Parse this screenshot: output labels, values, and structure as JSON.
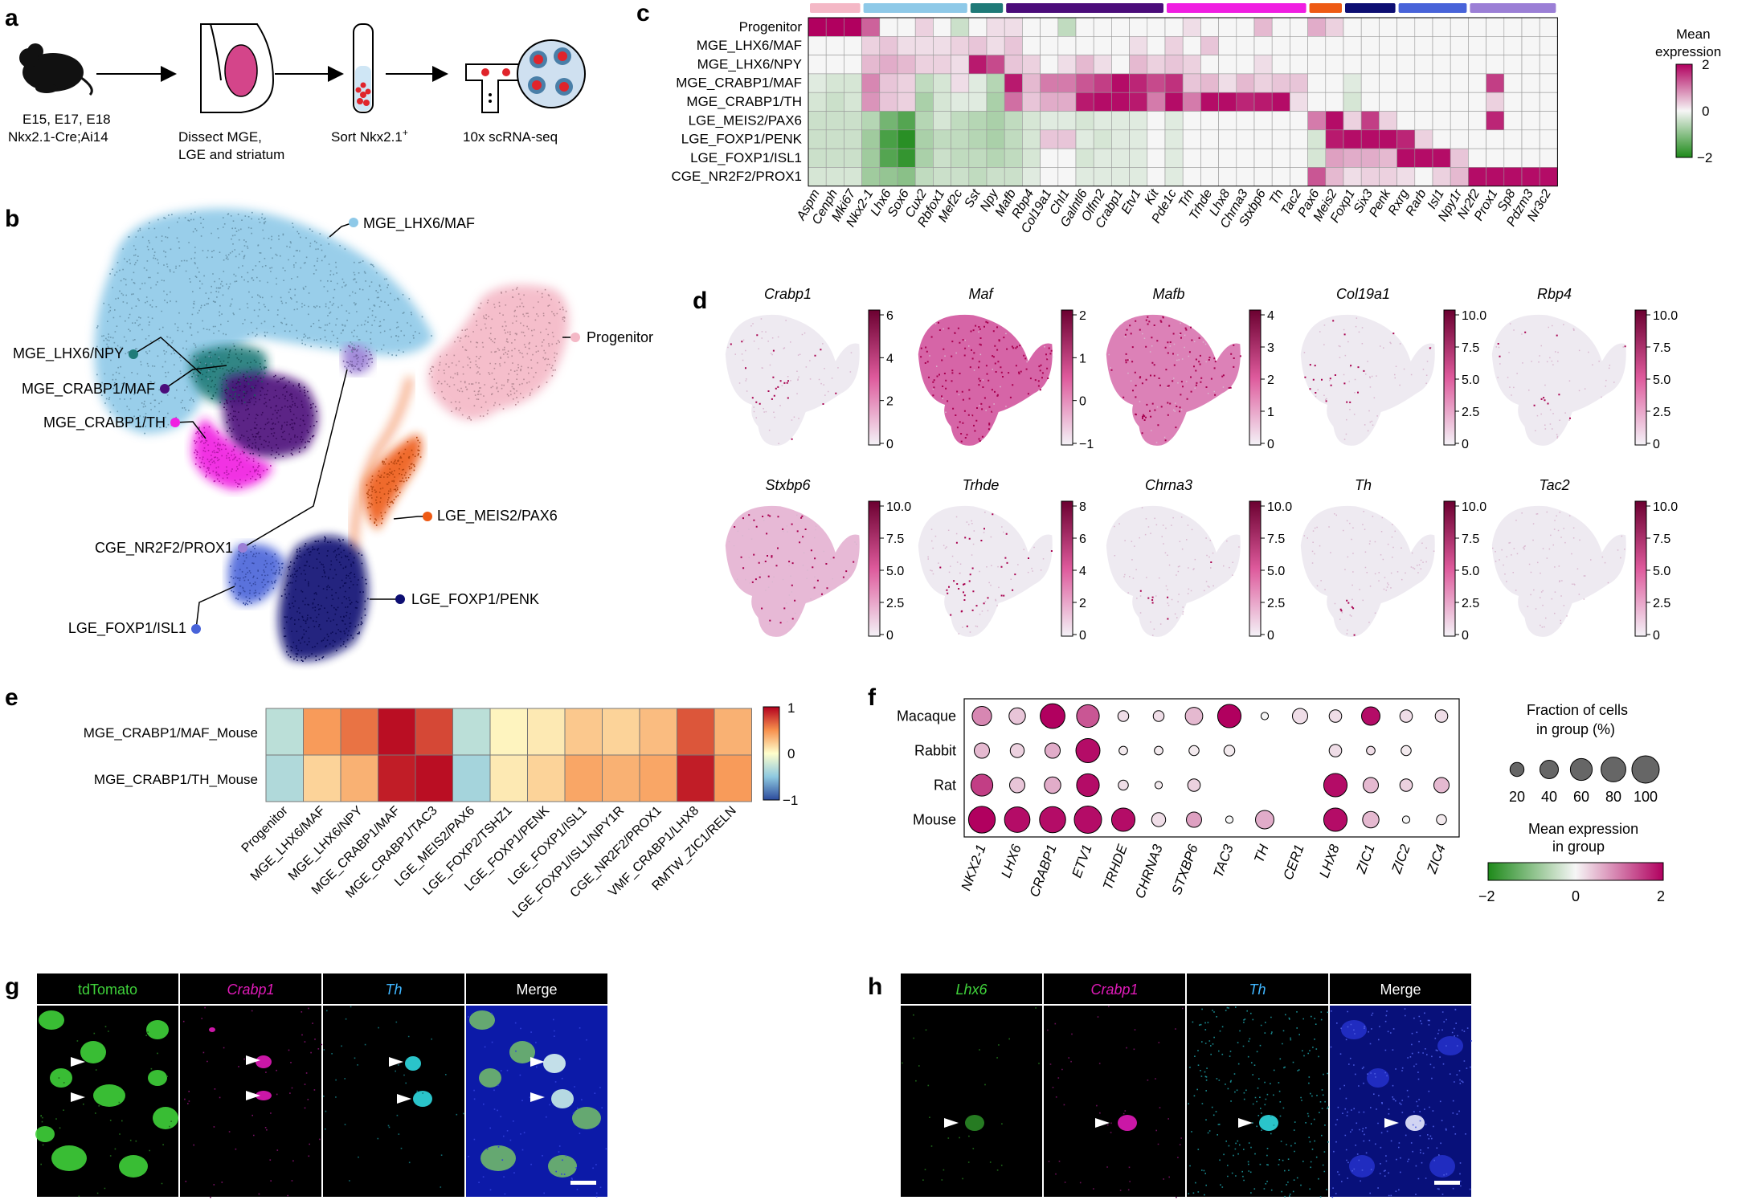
{
  "colors": {
    "heat_neg": "#1e8a1a",
    "heat_zero": "#f6f6f6",
    "heat_pos": "#b1005f",
    "rb_neg": "#2c4b9c",
    "rb_zero": "#ffffcc",
    "rb_pos": "#b3001e",
    "umap_clusters": {
      "MGE_LHX6/MAF": "#8ec9e8",
      "Progenitor": "#f4b8c6",
      "MGE_LHX6/NPY": "#1f7a78",
      "MGE_CRABP1/MAF": "#4b0c7a",
      "MGE_CRABP1/TH": "#f01ee1",
      "LGE_MEIS2/PAX6": "#ee5a14",
      "CGE_NR2F2/PROX1": "#9b7fd6",
      "LGE_FOXP1/ISL1": "#4863d9",
      "LGE_FOXP1/PENK": "#0d0e72"
    }
  },
  "panel_a": {
    "label": "a",
    "mouse_caption": [
      "E15, E17, E18",
      "Nkx2.1-Cre;Ai14"
    ],
    "dissect_caption": [
      "Dissect MGE,",
      "LGE and striatum"
    ],
    "sort_caption": "Sort Nkx2.1",
    "sort_sup": "+",
    "seq_caption": "10x scRNA-seq"
  },
  "panel_b": {
    "label": "b",
    "cluster_labels": [
      "MGE_LHX6/MAF",
      "Progenitor",
      "MGE_LHX6/NPY",
      "MGE_CRABP1/MAF",
      "MGE_CRABP1/TH",
      "LGE_MEIS2/PAX6",
      "CGE_NR2F2/PROX1",
      "LGE_FOXP1/ISL1",
      "LGE_FOXP1/PENK"
    ]
  },
  "panel_c": {
    "label": "c",
    "legend_title": [
      "Mean",
      "expression"
    ],
    "colorbar_ticks": [
      "2",
      "0",
      "−2"
    ],
    "rows": [
      "Progenitor",
      "MGE_LHX6/MAF",
      "MGE_LHX6/NPY",
      "MGE_CRABP1/MAF",
      "MGE_CRABP1/TH",
      "LGE_MEIS2/PAX6",
      "LGE_FOXP1/PENK",
      "LGE_FOXP1/ISL1",
      "CGE_NR2F2/PROX1"
    ],
    "genes": [
      "Aspm",
      "Cenph",
      "Mki67",
      "Nkx2-1",
      "Lhx6",
      "Sox6",
      "Cux2",
      "Rbfox1",
      "Mef2c",
      "Sst",
      "Npy",
      "Mafb",
      "Rbp4",
      "Col19a1",
      "Chl1",
      "Galntl6",
      "Olfm2",
      "Crabp1",
      "Etv1",
      "Kit",
      "Pde1c",
      "Trh",
      "Trhde",
      "Lhx8",
      "Chrna3",
      "Stxbp6",
      "Th",
      "Tac2",
      "Pax6",
      "Meis2",
      "Foxp1",
      "Six3",
      "Penk",
      "Rxrg",
      "Rarb",
      "Isl1",
      "Npy1r",
      "Nr2f2",
      "Prox1",
      "Sp8",
      "Pdzm3",
      "Nr3c2"
    ],
    "group_bars": [
      {
        "start": 0,
        "end": 2,
        "color": "#f4b8c6"
      },
      {
        "start": 3,
        "end": 8,
        "color": "#8ec9e8"
      },
      {
        "start": 9,
        "end": 10,
        "color": "#1f7a78"
      },
      {
        "start": 11,
        "end": 19,
        "color": "#4b0c7a"
      },
      {
        "start": 20,
        "end": 27,
        "color": "#f01ee1"
      },
      {
        "start": 28,
        "end": 29,
        "color": "#ee5a14"
      },
      {
        "start": 30,
        "end": 32,
        "color": "#0d0e72"
      },
      {
        "start": 33,
        "end": 36,
        "color": "#4863d9"
      },
      {
        "start": 37,
        "end": 41,
        "color": "#9b7fd6"
      }
    ],
    "matrix": [
      [
        2,
        2,
        2,
        1.2,
        0,
        0,
        0.3,
        0,
        -0.4,
        0,
        0.2,
        0.2,
        0,
        0,
        -0.5,
        0,
        0,
        0,
        0,
        0,
        0,
        0.2,
        0,
        0,
        0,
        0.5,
        0,
        0,
        0.6,
        0.3,
        0,
        0,
        0,
        0,
        0,
        0,
        0,
        0,
        0,
        0,
        0,
        0
      ],
      [
        0,
        0,
        0,
        0.3,
        0.4,
        0.2,
        0.2,
        0.2,
        0.3,
        0.4,
        0.2,
        0.4,
        0,
        0,
        0,
        0,
        0,
        0,
        0.2,
        0,
        0.3,
        0,
        0.4,
        0,
        0,
        0,
        0,
        0,
        0,
        0,
        0,
        0,
        0,
        0,
        0,
        0,
        0,
        0,
        0,
        0,
        0,
        0
      ],
      [
        0,
        0,
        0,
        0.5,
        0.6,
        0.5,
        0.3,
        0.3,
        0.2,
        1.8,
        1.4,
        0.4,
        0.3,
        0,
        0.2,
        0.5,
        0.2,
        0,
        0.5,
        0.3,
        0.4,
        0.3,
        0,
        0,
        0,
        0.2,
        0,
        0,
        0,
        0,
        0,
        0,
        0,
        0,
        0,
        0,
        0,
        0,
        0,
        0,
        0,
        0
      ],
      [
        -0.2,
        -0.3,
        -0.3,
        0.9,
        0.4,
        0.3,
        -0.5,
        -0.3,
        0.2,
        -0.2,
        -0.6,
        1.8,
        0.5,
        1.0,
        1.0,
        1.3,
        1.5,
        1.9,
        1.7,
        1.4,
        1.6,
        0.4,
        0.5,
        0.2,
        0.5,
        0.3,
        0.4,
        0.4,
        0,
        0,
        -0.2,
        0,
        0,
        0,
        0,
        0,
        0,
        0,
        1.5,
        0,
        0,
        0
      ],
      [
        -0.3,
        -0.4,
        -0.3,
        0.8,
        0.4,
        0.3,
        -0.7,
        -0.3,
        -0.2,
        -0.2,
        -0.7,
        1.1,
        0.4,
        0.6,
        0.6,
        1.8,
        1.9,
        1.9,
        1.8,
        1.0,
        1.9,
        1.0,
        1.9,
        1.9,
        1.7,
        1.8,
        1.9,
        0.2,
        0,
        0,
        -0.3,
        0,
        0,
        0,
        0,
        0,
        0,
        0,
        0.3,
        0,
        0,
        0
      ],
      [
        -0.4,
        -0.4,
        -0.4,
        -0.6,
        -1.2,
        -1.5,
        -0.6,
        -0.3,
        -0.5,
        -0.6,
        -0.7,
        -0.5,
        -0.3,
        -0.2,
        -0.2,
        -0.3,
        -0.2,
        -0.2,
        -0.2,
        0,
        -0.2,
        0,
        0,
        0,
        0,
        0,
        0,
        0,
        1.0,
        1.9,
        0.3,
        1.5,
        0.3,
        0,
        0,
        0,
        0,
        0,
        1.7,
        0,
        0,
        0
      ],
      [
        -0.4,
        -0.4,
        -0.4,
        -0.8,
        -1.6,
        -1.9,
        -0.7,
        -0.5,
        -0.5,
        -0.6,
        -0.7,
        -0.5,
        -0.3,
        0.4,
        0.4,
        -0.2,
        -0.3,
        -0.2,
        -0.2,
        0,
        -0.2,
        0,
        0,
        0,
        0,
        0,
        0,
        0,
        -0.3,
        1.8,
        1.9,
        1.9,
        1.9,
        1.7,
        0.3,
        0,
        0,
        0,
        0,
        0,
        0,
        0
      ],
      [
        -0.4,
        -0.4,
        -0.4,
        -0.8,
        -1.5,
        -1.8,
        -0.7,
        -0.4,
        -0.5,
        -0.5,
        -0.6,
        -0.5,
        -0.3,
        0,
        0,
        -0.3,
        -0.2,
        -0.2,
        -0.2,
        0,
        -0.2,
        0,
        0,
        0,
        0,
        0,
        0,
        0,
        -0.3,
        0.7,
        0.6,
        0.6,
        0.5,
        1.9,
        1.9,
        1.9,
        0.4,
        0,
        0,
        0,
        0,
        0
      ],
      [
        -0.3,
        -0.3,
        -0.3,
        -0.8,
        -0.9,
        -1.0,
        -0.5,
        -0.4,
        -0.4,
        -0.5,
        -0.4,
        -0.4,
        -0.2,
        0,
        0,
        -0.2,
        -0.2,
        -0.2,
        -0.2,
        0,
        -0.2,
        0,
        0,
        0,
        0,
        0,
        0,
        0,
        1.3,
        0.5,
        0.2,
        0.3,
        0.3,
        0.2,
        0,
        0.3,
        0.5,
        1.9,
        1.9,
        1.9,
        1.9,
        1.9
      ]
    ]
  },
  "panel_d": {
    "label": "d",
    "maps": [
      {
        "gene": "Crabp1",
        "ticks": [
          "6",
          "4",
          "2",
          "0"
        ]
      },
      {
        "gene": "Maf",
        "ticks": [
          "2",
          "1",
          "0",
          "−1"
        ]
      },
      {
        "gene": "Mafb",
        "ticks": [
          "4",
          "3",
          "2",
          "1",
          "0"
        ]
      },
      {
        "gene": "Col19a1",
        "ticks": [
          "10.0",
          "7.5",
          "5.0",
          "2.5",
          "0"
        ]
      },
      {
        "gene": "Rbp4",
        "ticks": [
          "10.0",
          "7.5",
          "5.0",
          "2.5",
          "0"
        ]
      },
      {
        "gene": "Stxbp6",
        "ticks": [
          "10.0",
          "7.5",
          "5.0",
          "2.5",
          "0"
        ]
      },
      {
        "gene": "Trhde",
        "ticks": [
          "8",
          "6",
          "4",
          "2",
          "0"
        ]
      },
      {
        "gene": "Chrna3",
        "ticks": [
          "10.0",
          "7.5",
          "5.0",
          "2.5",
          "0"
        ]
      },
      {
        "gene": "Th",
        "ticks": [
          "10.0",
          "7.5",
          "5.0",
          "2.5",
          "0"
        ]
      },
      {
        "gene": "Tac2",
        "ticks": [
          "10.0",
          "7.5",
          "5.0",
          "2.5",
          "0"
        ]
      }
    ]
  },
  "panel_e": {
    "label": "e",
    "rows": [
      "MGE_CRABP1/MAF_Mouse",
      "MGE_CRABP1/TH_Mouse"
    ],
    "cols": [
      "Progenitor",
      "MGE_LHX6/MAF",
      "MGE_LHX6/NPY",
      "MGE_CRABP1/MAF",
      "MGE_CRABP1/TAC3",
      "LGE_MEIS2/PAX6",
      "LGE_FOXP2/TSHZ1",
      "LGE_FOXP1/PENK",
      "LGE_FOXP1/ISL1",
      "LGE_FOXP1/ISL1/NPY1R",
      "CGE_NR2F2/PROX1",
      "VMF_CRABP1/LHX8",
      "RMTW_ZIC1/RELN"
    ],
    "matrix": [
      [
        -0.3,
        0.45,
        0.6,
        0.95,
        0.75,
        -0.3,
        0.05,
        0.1,
        0.25,
        0.2,
        0.3,
        0.7,
        0.35
      ],
      [
        -0.35,
        0.2,
        0.35,
        0.9,
        0.95,
        -0.4,
        0.1,
        0.2,
        0.4,
        0.35,
        0.4,
        0.9,
        0.45
      ]
    ],
    "colorbar_ticks": [
      "1",
      "0",
      "−1"
    ]
  },
  "panel_f": {
    "label": "f",
    "species": [
      "Macaque",
      "Rabbit",
      "Rat",
      "Mouse"
    ],
    "genes": [
      "NKX2-1",
      "LHX6",
      "CRABP1",
      "ETV1",
      "TRHDE",
      "CHRNA3",
      "STXBP6",
      "TAC3",
      "TH",
      "CER1",
      "LHX8",
      "ZIC1",
      "ZIC2",
      "ZIC4"
    ],
    "fraction": [
      [
        45,
        30,
        80,
        65,
        10,
        10,
        35,
        70,
        3,
        25,
        15,
        40,
        15,
        15
      ],
      [
        25,
        20,
        25,
        75,
        5,
        5,
        8,
        10,
        0,
        0,
        15,
        5,
        8,
        0
      ],
      [
        60,
        25,
        30,
        65,
        8,
        3,
        15,
        0,
        0,
        0,
        70,
        25,
        15,
        25
      ],
      [
        95,
        85,
        90,
        100,
        70,
        20,
        25,
        3,
        40,
        0,
        70,
        30,
        3,
        8
      ]
    ],
    "expression": [
      [
        0.9,
        0.4,
        2,
        1.3,
        0.2,
        0.2,
        0.5,
        2,
        0,
        0.2,
        0.2,
        1.9,
        0.2,
        0.2
      ],
      [
        0.5,
        0.3,
        0.6,
        1.9,
        0.1,
        0.1,
        0.1,
        0.1,
        0,
        0,
        0.2,
        0.2,
        0.1,
        0
      ],
      [
        1.5,
        0.4,
        0.6,
        1.9,
        0.2,
        0.1,
        0.3,
        0,
        0,
        0,
        1.9,
        0.5,
        0.3,
        0.5
      ],
      [
        2,
        1.9,
        1.9,
        1.9,
        1.9,
        0.2,
        0.7,
        0,
        0.6,
        0,
        1.9,
        0.5,
        0,
        0.1
      ]
    ],
    "size_legend_title": [
      "Fraction of cells",
      "in group (%)"
    ],
    "size_legend_values": [
      20,
      40,
      60,
      80,
      100
    ],
    "color_legend_title": [
      "Mean expression",
      "in group"
    ],
    "color_legend_ticks": [
      "−2",
      "0",
      "2"
    ]
  },
  "panel_g": {
    "label": "g",
    "titles": [
      "tdTomato",
      "Crabp1",
      "Th",
      "Merge"
    ]
  },
  "panel_h": {
    "label": "h",
    "titles": [
      "Lhx6",
      "Crabp1",
      "Th",
      "Merge"
    ]
  }
}
